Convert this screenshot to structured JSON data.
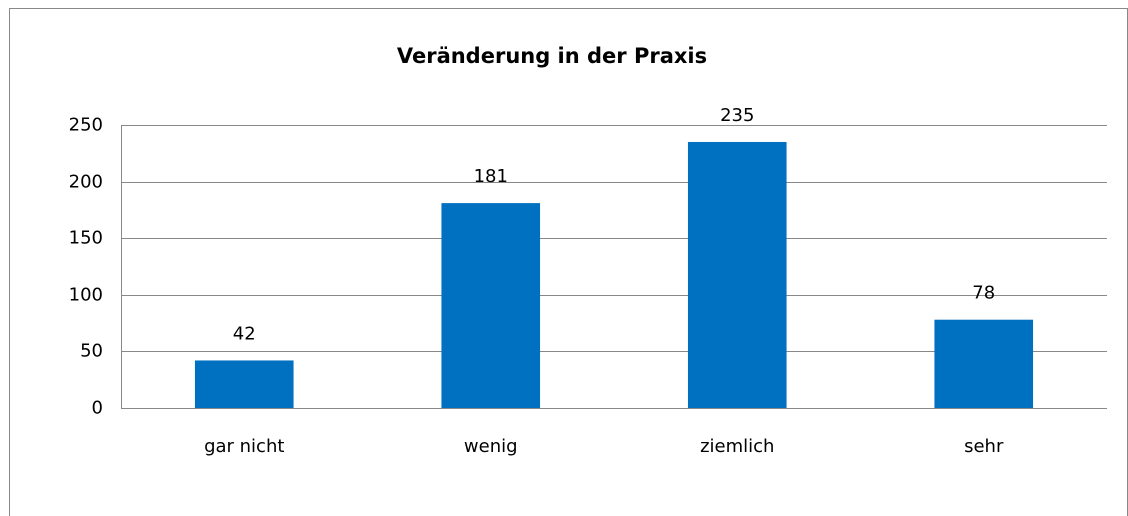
{
  "chart_data": {
    "type": "bar",
    "title": "Veränderung in der Praxis",
    "categories": [
      "gar nicht",
      "wenig",
      "ziemlich",
      "sehr"
    ],
    "values": [
      42,
      181,
      235,
      78
    ],
    "color": "#0070c0",
    "ylim": [
      0,
      250
    ],
    "yticks": [
      0,
      50,
      100,
      150,
      200,
      250
    ],
    "grid": true
  }
}
